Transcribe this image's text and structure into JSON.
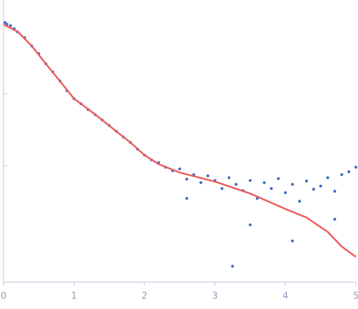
{
  "chart_data": {
    "type": "scatter",
    "log_y": true,
    "xlim": [
      0,
      5
    ],
    "xticks": [
      0,
      1,
      2,
      3,
      4,
      5
    ],
    "ylim": [
      0.00024,
      2.0
    ],
    "yticks": [
      0.01,
      0.1
    ],
    "series": [
      {
        "kind": "points",
        "color": "#3d6bc4",
        "x": [
          0.02,
          0.05,
          0.1,
          0.15,
          0.2,
          0.3,
          0.4,
          0.5,
          0.6,
          0.7,
          0.8,
          0.9,
          1.0,
          1.1,
          1.2,
          1.3,
          1.4,
          1.5,
          1.6,
          1.7,
          1.8,
          1.9,
          2.0,
          2.1,
          2.2,
          2.3,
          2.4,
          2.5,
          2.6,
          2.6,
          2.7,
          2.8,
          2.9,
          3.0,
          3.1,
          3.2,
          3.25,
          3.3,
          3.4,
          3.5,
          3.5,
          3.6,
          3.7,
          3.8,
          3.9,
          4.0,
          4.1,
          4.1,
          4.2,
          4.3,
          4.4,
          4.5,
          4.6,
          4.7,
          4.7,
          4.8,
          4.9,
          5.0
        ],
        "y": [
          0.97,
          0.92,
          0.88,
          0.8,
          0.72,
          0.6,
          0.46,
          0.36,
          0.26,
          0.2,
          0.15,
          0.11,
          0.085,
          0.072,
          0.06,
          0.051,
          0.043,
          0.036,
          0.03,
          0.025,
          0.021,
          0.017,
          0.014,
          0.012,
          0.011,
          0.0095,
          0.0085,
          0.009,
          0.0065,
          0.0035,
          0.0075,
          0.0058,
          0.0072,
          0.0062,
          0.0048,
          0.0068,
          0.0004,
          0.0055,
          0.0045,
          0.0062,
          0.0015,
          0.0035,
          0.0058,
          0.0048,
          0.0066,
          0.0042,
          0.0055,
          0.0009,
          0.0032,
          0.0061,
          0.0047,
          0.0052,
          0.0068,
          0.0044,
          0.0018,
          0.0075,
          0.0082,
          0.0095
        ]
      },
      {
        "kind": "line",
        "color": "#e8605f",
        "x": [
          0,
          0.2,
          0.4,
          0.6,
          0.8,
          1.0,
          1.2,
          1.4,
          1.6,
          1.8,
          2.0,
          2.2,
          2.5,
          3.0,
          3.5,
          4.0,
          4.3,
          4.6,
          4.8,
          5.0
        ],
        "y": [
          0.914,
          0.73,
          0.46,
          0.26,
          0.15,
          0.085,
          0.061,
          0.043,
          0.03,
          0.021,
          0.014,
          0.0105,
          0.008,
          0.006,
          0.0041,
          0.0025,
          0.0019,
          0.0012,
          0.00075,
          0.00054
        ]
      }
    ]
  }
}
